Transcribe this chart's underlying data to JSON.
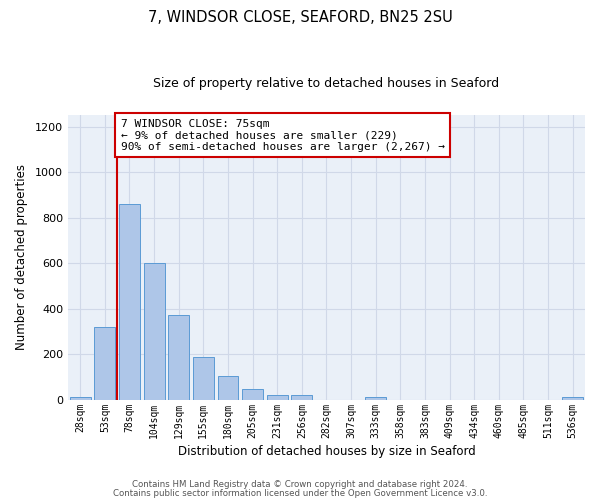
{
  "title": "7, WINDSOR CLOSE, SEAFORD, BN25 2SU",
  "subtitle": "Size of property relative to detached houses in Seaford",
  "xlabel": "Distribution of detached houses by size in Seaford",
  "ylabel": "Number of detached properties",
  "bar_labels": [
    "28sqm",
    "53sqm",
    "78sqm",
    "104sqm",
    "129sqm",
    "155sqm",
    "180sqm",
    "205sqm",
    "231sqm",
    "256sqm",
    "282sqm",
    "307sqm",
    "333sqm",
    "358sqm",
    "383sqm",
    "409sqm",
    "434sqm",
    "460sqm",
    "485sqm",
    "511sqm",
    "536sqm"
  ],
  "bar_values": [
    10,
    320,
    860,
    600,
    370,
    185,
    105,
    45,
    20,
    20,
    0,
    0,
    10,
    0,
    0,
    0,
    0,
    0,
    0,
    0,
    10
  ],
  "bar_color": "#aec6e8",
  "bar_edge_color": "#5b9bd5",
  "vline_color": "#cc0000",
  "annotation_text": "7 WINDSOR CLOSE: 75sqm\n← 9% of detached houses are smaller (229)\n90% of semi-detached houses are larger (2,267) →",
  "annotation_box_color": "#ffffff",
  "annotation_box_edge_color": "#cc0000",
  "ylim": [
    0,
    1250
  ],
  "yticks": [
    0,
    200,
    400,
    600,
    800,
    1000,
    1200
  ],
  "grid_color": "#d0d8e8",
  "bg_color": "#eaf0f8",
  "footer1": "Contains HM Land Registry data © Crown copyright and database right 2024.",
  "footer2": "Contains public sector information licensed under the Open Government Licence v3.0."
}
